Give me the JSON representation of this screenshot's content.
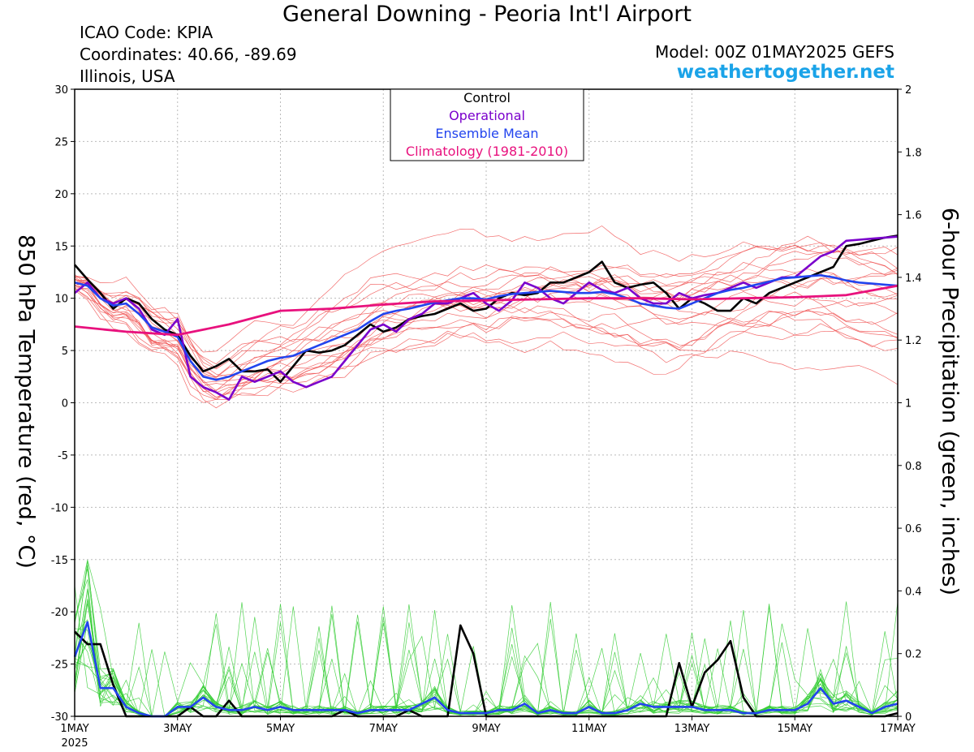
{
  "header": {
    "title": "General Downing - Peoria Int'l Airport",
    "icao": "ICAO Code: KPIA",
    "coordinates": "Coordinates: 40.66, -89.69",
    "region": "Illinois, USA",
    "model": "Model: 00Z 01MAY2025 GEFS",
    "site": "weathertogether.net"
  },
  "colors": {
    "control": "#000000",
    "operational": "#7a00cc",
    "ensemble_mean": "#2244ee",
    "climatology": "#e8117d",
    "members_temp": "#f05050",
    "members_precip": "#33cc33",
    "site": "#1aa3e8"
  },
  "chart_data": {
    "type": "line",
    "title": "General Downing - Peoria Int'l Airport",
    "xlabel": "",
    "ylabel_left": "850 hPa Temperature (red, °C)",
    "ylabel_right": "6-hour Precipitation (green, inches)",
    "ylim_left": [
      -30,
      30
    ],
    "ylim_right": [
      0,
      2
    ],
    "x_ticks": [
      "1MAY",
      "3MAY",
      "5MAY",
      "7MAY",
      "9MAY",
      "11MAY",
      "13MAY",
      "15MAY",
      "17MAY"
    ],
    "x_year": "2025",
    "y_ticks_left": [
      30,
      25,
      20,
      15,
      10,
      5,
      0,
      -5,
      -10,
      -15,
      -20,
      -25,
      -30
    ],
    "y_ticks_right": [
      2,
      1.8,
      1.6,
      1.4,
      1.2,
      1,
      0.8,
      0.6,
      0.4,
      0.2,
      0
    ],
    "x_range_days": [
      0,
      16
    ],
    "grid": true,
    "legend_position": "top-center",
    "legend": [
      "Control",
      "Operational",
      "Ensemble Mean",
      "Climatology (1981-2010)"
    ],
    "series": [
      {
        "name": "Control",
        "kind": "temperature",
        "x": [
          0,
          0.25,
          0.5,
          0.75,
          1,
          1.25,
          1.5,
          1.75,
          2,
          2.25,
          2.5,
          2.75,
          3,
          3.25,
          3.5,
          3.75,
          4,
          4.25,
          4.5,
          4.75,
          5,
          5.25,
          5.5,
          5.75,
          6,
          6.25,
          6.5,
          6.75,
          7,
          7.25,
          7.5,
          7.75,
          8,
          8.25,
          8.5,
          8.75,
          9,
          9.25,
          9.5,
          9.75,
          10,
          10.25,
          10.5,
          10.75,
          11,
          11.25,
          11.5,
          11.75,
          12,
          12.25,
          12.5,
          12.75,
          13,
          13.25,
          13.5,
          13.75,
          14,
          14.25,
          14.5,
          14.75,
          15,
          15.25,
          15.5,
          15.75,
          16
        ],
        "y": [
          13.2,
          11.8,
          10.5,
          9.0,
          10.0,
          9.5,
          8.0,
          7.0,
          6.5,
          4.5,
          3.0,
          3.5,
          4.2,
          3.0,
          3.0,
          3.2,
          2.0,
          3.5,
          5.0,
          4.8,
          5.0,
          5.5,
          6.5,
          7.5,
          6.8,
          7.2,
          8.0,
          8.3,
          8.5,
          9.0,
          9.5,
          8.8,
          9.0,
          10.0,
          10.5,
          10.3,
          10.5,
          11.5,
          11.5,
          12.0,
          12.5,
          13.5,
          11.5,
          11.0,
          11.3,
          11.5,
          10.5,
          9.0,
          10.0,
          9.5,
          8.8,
          8.8,
          10.0,
          9.5,
          10.5,
          11.0,
          11.5,
          12.0,
          12.5,
          13.0,
          15.0,
          15.2,
          15.5,
          15.8,
          16.0
        ]
      },
      {
        "name": "Operational",
        "kind": "temperature",
        "x": [
          0,
          0.25,
          0.5,
          0.75,
          1,
          1.25,
          1.5,
          1.75,
          2,
          2.25,
          2.5,
          2.75,
          3,
          3.25,
          3.5,
          3.75,
          4,
          4.25,
          4.5,
          4.75,
          5,
          5.25,
          5.5,
          5.75,
          6,
          6.25,
          6.5,
          6.75,
          7,
          7.25,
          7.5,
          7.75,
          8,
          8.25,
          8.5,
          8.75,
          9,
          9.25,
          9.5,
          9.75,
          10,
          10.25,
          10.5,
          10.75,
          11,
          11.25,
          11.5,
          11.75,
          12,
          12.25,
          12.5,
          12.75,
          13,
          13.25,
          13.5,
          13.75,
          14,
          14.25,
          14.5,
          14.75,
          15,
          15.25,
          15.5,
          15.75,
          16
        ],
        "y": [
          10.5,
          11.5,
          10.0,
          9.5,
          10.0,
          9.0,
          7.0,
          6.5,
          8.0,
          2.5,
          1.5,
          1.0,
          0.3,
          2.5,
          2.0,
          2.5,
          3.0,
          2.0,
          1.5,
          2.0,
          2.5,
          4.0,
          5.5,
          7.0,
          7.5,
          6.8,
          8.0,
          8.5,
          9.5,
          9.5,
          10.0,
          10.5,
          9.5,
          8.8,
          9.8,
          11.5,
          11.0,
          10.0,
          9.5,
          10.5,
          11.5,
          10.8,
          10.5,
          11.0,
          10.0,
          9.5,
          9.5,
          10.5,
          10.0,
          10.3,
          10.5,
          11.0,
          11.5,
          11.0,
          11.5,
          12.0,
          12.0,
          13.0,
          14.0,
          14.5,
          15.5,
          15.6,
          15.7,
          15.8,
          15.9
        ]
      },
      {
        "name": "Ensemble Mean",
        "kind": "temperature",
        "x": [
          0,
          0.25,
          0.5,
          0.75,
          1,
          1.25,
          1.5,
          1.75,
          2,
          2.25,
          2.5,
          2.75,
          3,
          3.25,
          3.5,
          3.75,
          4,
          4.25,
          4.5,
          4.75,
          5,
          5.25,
          5.5,
          5.75,
          6,
          6.25,
          6.5,
          6.75,
          7,
          7.25,
          7.5,
          7.75,
          8,
          8.25,
          8.5,
          8.75,
          9,
          9.25,
          9.5,
          9.75,
          10,
          10.25,
          10.5,
          10.75,
          11,
          11.25,
          11.5,
          11.75,
          12,
          12.25,
          12.5,
          12.75,
          13,
          13.25,
          13.5,
          13.75,
          14,
          14.25,
          14.5,
          14.75,
          15,
          15.25,
          15.5,
          15.75,
          16
        ],
        "y": [
          11.5,
          11.2,
          10.0,
          9.3,
          9.5,
          8.5,
          7.2,
          6.8,
          6.3,
          4.0,
          2.5,
          2.2,
          2.5,
          3.0,
          3.5,
          4.0,
          4.3,
          4.5,
          5.0,
          5.5,
          6.0,
          6.5,
          7.0,
          7.8,
          8.5,
          8.8,
          9.0,
          9.3,
          9.6,
          9.8,
          10.0,
          10.0,
          9.9,
          10.2,
          10.4,
          10.5,
          10.6,
          10.7,
          10.6,
          10.5,
          10.5,
          10.6,
          10.4,
          10.0,
          9.5,
          9.3,
          9.1,
          9.0,
          9.5,
          10.0,
          10.5,
          10.8,
          11.0,
          11.3,
          11.6,
          11.9,
          12.0,
          12.1,
          12.2,
          12.0,
          11.7,
          11.5,
          11.4,
          11.3,
          11.2
        ]
      },
      {
        "name": "Climatology (1981-2010)",
        "kind": "temperature",
        "x": [
          0,
          1,
          2,
          3,
          4,
          5,
          6,
          7,
          8,
          9,
          10,
          11,
          12,
          13,
          14,
          15,
          16
        ],
        "y": [
          7.3,
          6.8,
          6.5,
          7.5,
          8.8,
          9.0,
          9.4,
          9.7,
          9.8,
          9.9,
          10.0,
          10.0,
          9.9,
          10.0,
          10.1,
          10.3,
          11.2
        ]
      },
      {
        "name": "Control",
        "kind": "precipitation",
        "x": [
          0,
          0.25,
          0.5,
          0.75,
          1,
          1.25,
          1.5,
          1.75,
          2,
          2.25,
          2.5,
          2.75,
          3,
          3.25,
          3.5,
          3.75,
          4,
          4.25,
          4.5,
          4.75,
          5,
          5.25,
          5.5,
          5.75,
          6,
          6.25,
          6.5,
          6.75,
          7,
          7.25,
          7.5,
          7.75,
          8,
          8.25,
          8.5,
          8.75,
          9,
          9.25,
          9.5,
          9.75,
          10,
          10.25,
          10.5,
          10.75,
          11,
          11.25,
          11.5,
          11.75,
          12,
          12.25,
          12.5,
          12.75,
          13,
          13.25,
          13.5,
          13.75,
          14,
          14.25,
          14.5,
          14.75,
          15,
          15.25,
          15.5,
          15.75,
          16
        ],
        "y": [
          0.27,
          0.23,
          0.23,
          0.1,
          0.0,
          0.0,
          0.0,
          0.0,
          0.0,
          0.03,
          0.0,
          0.0,
          0.05,
          0.0,
          0.0,
          0.0,
          0.0,
          0.0,
          0.0,
          0.0,
          0.0,
          0.02,
          0.0,
          0.0,
          0.0,
          0.0,
          0.02,
          0.0,
          0.0,
          0.0,
          0.29,
          0.2,
          0.0,
          0.0,
          0.0,
          0.0,
          0.0,
          0.0,
          0.0,
          0.0,
          0.0,
          0.0,
          0.0,
          0.0,
          0.0,
          0.0,
          0.0,
          0.17,
          0.03,
          0.14,
          0.18,
          0.24,
          0.06,
          0.0,
          0.0,
          0.0,
          0.0,
          0.0,
          0.0,
          0.0,
          0.0,
          0.0,
          0.0,
          0.0,
          0.01
        ]
      },
      {
        "name": "Ensemble Mean",
        "kind": "precipitation",
        "x": [
          0,
          0.25,
          0.5,
          0.75,
          1,
          1.25,
          1.5,
          1.75,
          2,
          2.25,
          2.5,
          2.75,
          3,
          3.25,
          3.5,
          3.75,
          4,
          4.25,
          4.5,
          4.75,
          5,
          5.25,
          5.5,
          5.75,
          6,
          6.25,
          6.5,
          6.75,
          7,
          7.25,
          7.5,
          7.75,
          8,
          8.25,
          8.5,
          8.75,
          9,
          9.25,
          9.5,
          9.75,
          10,
          10.25,
          10.5,
          10.75,
          11,
          11.25,
          11.5,
          11.75,
          12,
          12.25,
          12.5,
          12.75,
          13,
          13.25,
          13.5,
          13.75,
          14,
          14.25,
          14.5,
          14.75,
          15,
          15.25,
          15.5,
          15.75,
          16
        ],
        "y": [
          0.19,
          0.3,
          0.09,
          0.09,
          0.03,
          0.01,
          0.0,
          0.0,
          0.03,
          0.03,
          0.06,
          0.03,
          0.02,
          0.02,
          0.03,
          0.02,
          0.03,
          0.02,
          0.02,
          0.02,
          0.02,
          0.02,
          0.01,
          0.02,
          0.02,
          0.02,
          0.02,
          0.04,
          0.06,
          0.02,
          0.01,
          0.01,
          0.01,
          0.02,
          0.02,
          0.04,
          0.01,
          0.02,
          0.01,
          0.01,
          0.03,
          0.01,
          0.01,
          0.02,
          0.04,
          0.03,
          0.03,
          0.03,
          0.03,
          0.02,
          0.02,
          0.02,
          0.01,
          0.01,
          0.02,
          0.02,
          0.02,
          0.04,
          0.09,
          0.04,
          0.05,
          0.03,
          0.01,
          0.03,
          0.04
        ]
      }
    ]
  }
}
